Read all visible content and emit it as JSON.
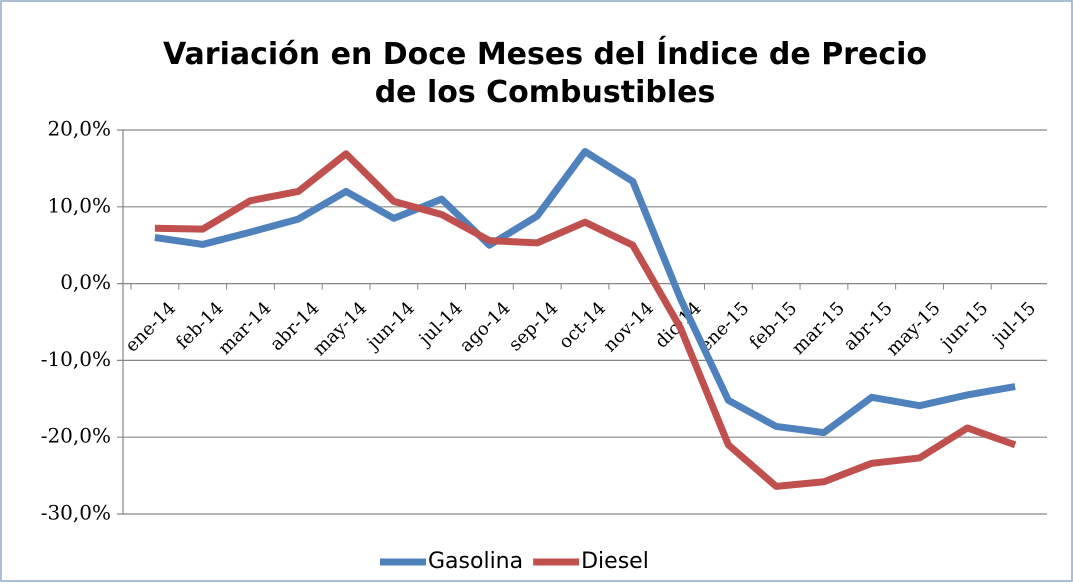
{
  "chart_data": {
    "type": "line",
    "title": "Variación en Doce Meses del Índice de Precio de los Combustibles",
    "categories": [
      "ene-14",
      "feb-14",
      "mar-14",
      "abr-14",
      "may-14",
      "jun-14",
      "jul-14",
      "ago-14",
      "sep-14",
      "oct-14",
      "nov-14",
      "dic-14",
      "ene-15",
      "feb-15",
      "mar-15",
      "abr-15",
      "may-15",
      "jun-15",
      "jul-15"
    ],
    "series": [
      {
        "name": "Gasolina",
        "color": "#4f81bd",
        "values": [
          6.0,
          5.1,
          6.7,
          8.4,
          12.0,
          8.5,
          11.0,
          5.0,
          8.8,
          17.2,
          13.3,
          -2.0,
          -15.2,
          -18.6,
          -19.4,
          -14.8,
          -15.9,
          -14.5,
          -13.4
        ]
      },
      {
        "name": "Diesel",
        "color": "#c0504d",
        "values": [
          7.2,
          7.1,
          10.8,
          12.0,
          16.9,
          10.7,
          9.0,
          5.6,
          5.3,
          8.0,
          5.0,
          -5.8,
          -21.0,
          -26.4,
          -25.8,
          -23.4,
          -22.7,
          -18.8,
          -21.0
        ]
      }
    ],
    "ylim": [
      -30,
      20
    ],
    "yticks": [
      {
        "value": -30,
        "label": "-30,0%"
      },
      {
        "value": -20,
        "label": "-20,0%"
      },
      {
        "value": -10,
        "label": "-10,0%"
      },
      {
        "value": 0,
        "label": "0,0%"
      },
      {
        "value": 10,
        "label": "10,0%"
      },
      {
        "value": 20,
        "label": "20,0%"
      }
    ],
    "grid": true,
    "legend": "bottom"
  }
}
